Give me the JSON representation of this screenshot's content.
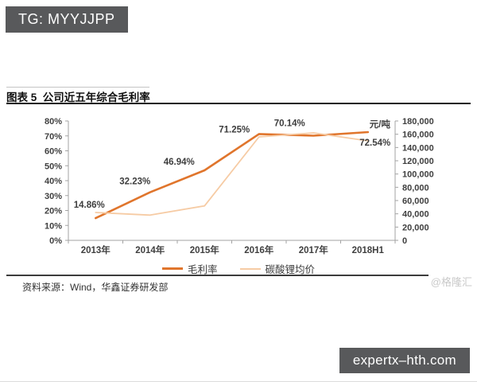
{
  "tg_badge": {
    "label": "TG: MYYJJPP",
    "bg": "#58595B",
    "fg": "#ffffff"
  },
  "figure_header": {
    "title": "图表 5  公司近五年综合毛利率"
  },
  "source_note": {
    "text": "资料来源：Wind，华鑫证券研发部"
  },
  "watermark": {
    "text": "@格隆汇"
  },
  "site_badge": {
    "label": "expertx–hth.com",
    "bg": "#58595B",
    "fg": "#ffffff"
  },
  "chart_data": {
    "type": "line",
    "title": "图表 5 公司近五年综合毛利率",
    "categories": [
      "2013年",
      "2014年",
      "2015年",
      "2016年",
      "2017年",
      "2018H1"
    ],
    "series": [
      {
        "name": "毛利率",
        "axis": "left",
        "unit": "%",
        "color": "#E0752C",
        "stroke_width": 2.6,
        "values": [
          14.86,
          32.23,
          46.94,
          71.25,
          70.14,
          72.54
        ],
        "point_labels": [
          "14.86%",
          "32.23%",
          "46.94%",
          "71.25%",
          "70.14%",
          "72.54%"
        ]
      },
      {
        "name": "碳酸锂均价",
        "axis": "right",
        "unit": "元/吨",
        "color": "#F6CBA4",
        "stroke_width": 1.8,
        "values": [
          42000,
          38000,
          52000,
          156000,
          162000,
          150000
        ]
      }
    ],
    "left_axis": {
      "min": 0,
      "max": 80,
      "step": 10,
      "tick_labels": [
        "0%",
        "10%",
        "20%",
        "30%",
        "40%",
        "50%",
        "60%",
        "70%",
        "80%"
      ]
    },
    "right_axis": {
      "min": 0,
      "max": 180000,
      "step": 20000,
      "unit_label": "元/吨",
      "tick_labels": [
        "0",
        "20,000",
        "40,000",
        "60,000",
        "80,000",
        "100,000",
        "120,000",
        "140,000",
        "160,000",
        "180,000"
      ]
    },
    "legend": {
      "position": "bottom",
      "entries": [
        "毛利率",
        "碳酸锂均价"
      ]
    },
    "grid": false
  }
}
